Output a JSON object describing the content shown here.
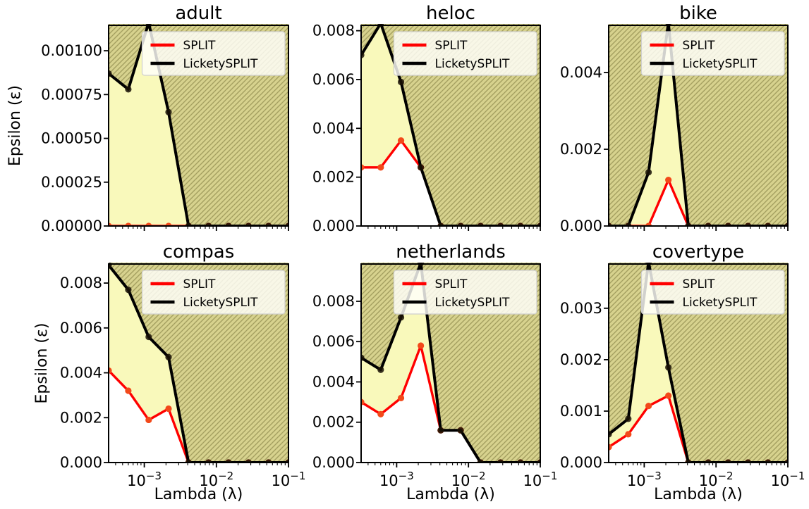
{
  "figure": {
    "xlabel": "Lambda (λ)",
    "ylabel": "Epsilon (ε)",
    "legend": {
      "entries": [
        {
          "label": "SPLIT",
          "color": "#ff0000"
        },
        {
          "label": "LicketySPLIT",
          "color": "#000000"
        }
      ]
    },
    "colors": {
      "split_line": "#ff0000",
      "split_marker": "#f2491a",
      "licketysplit_line": "#000000",
      "licketysplit_marker": "rgba(25,17,5,0.85)",
      "fill_between": "#f9f9bb",
      "hatch_bg": "#d7d28e",
      "hatch_line": "#a49f60",
      "legend_bg": "rgba(255,255,250,0.82)",
      "legend_border": "#cfcfcf"
    }
  },
  "chart_data": {
    "type": "line",
    "xscale": "log",
    "x": [
      0.00032,
      0.0006,
      0.00115,
      0.00217,
      0.00411,
      0.00778,
      0.01473,
      0.0279,
      0.05283,
      0.1
    ],
    "xlim": [
      0.00032,
      0.1
    ],
    "xticks": [
      0.001,
      0.01,
      0.1
    ],
    "xtick_labels": [
      "10^-3",
      "10^-2",
      "10^-1"
    ],
    "series_names": [
      "SPLIT",
      "LicketySPLIT"
    ],
    "legend_position": "upper right",
    "grid": false,
    "panels": [
      {
        "title": "adult",
        "ylim": [
          0,
          0.001145
        ],
        "yticks": [
          0,
          0.00025,
          0.0005,
          0.00075,
          0.001
        ],
        "ytick_labels": [
          "0.00000",
          "0.00025",
          "0.00050",
          "0.00075",
          "0.00100"
        ],
        "split": [
          0,
          0,
          0,
          0,
          0,
          0,
          0,
          0,
          0,
          0
        ],
        "licketysplit": [
          0.00087,
          0.00078,
          0.00116,
          0.00065,
          0,
          0,
          0,
          0,
          0,
          0
        ]
      },
      {
        "title": "heloc",
        "ylim": [
          0,
          0.00822
        ],
        "yticks": [
          0,
          0.002,
          0.004,
          0.006,
          0.008
        ],
        "ytick_labels": [
          "0.000",
          "0.002",
          "0.004",
          "0.006",
          "0.008"
        ],
        "split": [
          0.0024,
          0.0024,
          0.0035,
          0.0024,
          0,
          0,
          0,
          0,
          0,
          0
        ],
        "licketysplit": [
          0.007,
          0.0083,
          0.0059,
          0.0024,
          0,
          0,
          0,
          0,
          0,
          0
        ]
      },
      {
        "title": "bike",
        "ylim": [
          0,
          0.00523
        ],
        "yticks": [
          0,
          0.002,
          0.004
        ],
        "ytick_labels": [
          "0.000",
          "0.002",
          "0.004"
        ],
        "split": [
          0,
          0,
          0,
          0.0012,
          0,
          0,
          0,
          0,
          0,
          0
        ],
        "licketysplit": [
          0,
          0,
          0.0014,
          0.0053,
          0,
          0,
          0,
          0,
          0,
          0
        ]
      },
      {
        "title": "compas",
        "ylim": [
          0,
          0.00885
        ],
        "yticks": [
          0,
          0.002,
          0.004,
          0.006,
          0.008
        ],
        "ytick_labels": [
          "0.000",
          "0.002",
          "0.004",
          "0.006",
          "0.008"
        ],
        "split": [
          0.0041,
          0.0032,
          0.0019,
          0.0024,
          0,
          0,
          0,
          0,
          0,
          0
        ],
        "licketysplit": [
          0.0088,
          0.0077,
          0.0056,
          0.0047,
          0,
          0,
          0,
          0,
          0,
          0
        ]
      },
      {
        "title": "netherlands",
        "ylim": [
          0,
          0.00985
        ],
        "yticks": [
          0,
          0.002,
          0.004,
          0.006,
          0.008
        ],
        "ytick_labels": [
          "0.000",
          "0.002",
          "0.004",
          "0.006",
          "0.008"
        ],
        "split": [
          0.003,
          0.0024,
          0.0032,
          0.0058,
          0.0016,
          0.0016,
          0,
          0,
          0,
          0
        ],
        "licketysplit": [
          0.0052,
          0.0046,
          0.0072,
          0.0099,
          0.0016,
          0.0016,
          0,
          0,
          0,
          0
        ]
      },
      {
        "title": "covertype",
        "ylim": [
          0,
          0.00386
        ],
        "yticks": [
          0,
          0.001,
          0.002,
          0.003
        ],
        "ytick_labels": [
          "0.000",
          "0.001",
          "0.002",
          "0.003"
        ],
        "split": [
          0.0003,
          0.00055,
          0.0011,
          0.0013,
          0,
          0,
          0,
          0,
          0,
          0
        ],
        "licketysplit": [
          0.00055,
          0.00085,
          0.0039,
          0.00185,
          0,
          0,
          0,
          0,
          0,
          0
        ]
      }
    ]
  }
}
